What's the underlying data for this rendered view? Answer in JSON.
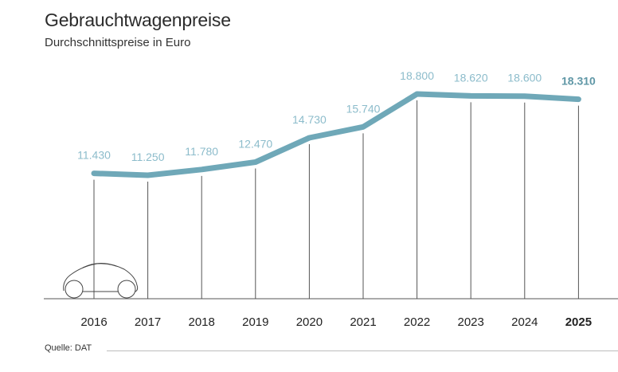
{
  "chart_data": {
    "type": "line",
    "title": "Gebrauchtwagenpreise",
    "subtitle": "Durchschnittspreise in Euro",
    "xlabel": "",
    "ylabel": "",
    "categories": [
      "2016",
      "2017",
      "2018",
      "2019",
      "2020",
      "2021",
      "2022",
      "2023",
      "2024",
      "2025"
    ],
    "values": [
      11430,
      11250,
      11780,
      12470,
      14730,
      15740,
      18800,
      18620,
      18600,
      18310
    ],
    "value_labels": [
      "11.430",
      "11.250",
      "11.780",
      "12.470",
      "14.730",
      "15.740",
      "18.800",
      "18.620",
      "18.600",
      "18.310"
    ],
    "highlight_index": 9,
    "source": "Quelle: DAT",
    "line_color": "#6fa8b8",
    "label_color": "#8cbccb",
    "highlight_label_color": "#5f97a6"
  },
  "decorations": {
    "car_icon": "car-outline-icon"
  }
}
